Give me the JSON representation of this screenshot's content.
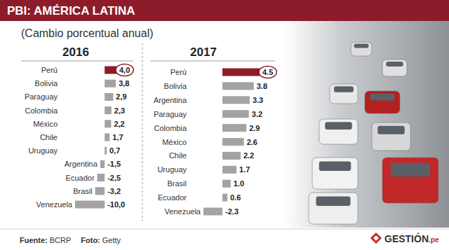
{
  "header": {
    "title": "PBI: AMÉRICA LATINA",
    "subtitle": "(Cambio porcentual anual)"
  },
  "chart_data": [
    {
      "type": "bar",
      "title": "2016",
      "orientation": "horizontal",
      "data_labels": true,
      "tick_labels": false,
      "categories": [
        "Perú",
        "Bolivia",
        "Paraguay",
        "Colombia",
        "México",
        "Chile",
        "Uruguay",
        "Argentina",
        "Ecuador",
        "Brasil",
        "Venezuela"
      ],
      "values": [
        4.0,
        3.8,
        2.9,
        2.3,
        2.2,
        1.7,
        0.7,
        -1.5,
        -2.5,
        -3.2,
        -10.0
      ],
      "value_labels": [
        "4,0",
        "3,8",
        "2,9",
        "2,3",
        "2,2",
        "1,7",
        "0,7",
        "-1,5",
        "-2,5",
        "-3,2",
        "-10,0"
      ],
      "colors": [
        "#8c1c2a",
        "#a3a3a3",
        "#a3a3a3",
        "#a3a3a3",
        "#a3a3a3",
        "#a3a3a3",
        "#a3a3a3",
        "#a3a3a3",
        "#a3a3a3",
        "#a3a3a3",
        "#a3a3a3"
      ],
      "xlim": [
        -10,
        4
      ]
    },
    {
      "type": "bar",
      "title": "2017",
      "orientation": "horizontal",
      "data_labels": true,
      "tick_labels": false,
      "categories": [
        "Perú",
        "Bolivia",
        "Argentina",
        "Paraguay",
        "Colombia",
        "México",
        "Chile",
        "Uruguay",
        "Brasil",
        "Ecuador",
        "Venezuela"
      ],
      "values": [
        4.5,
        3.8,
        3.3,
        3.2,
        2.9,
        2.6,
        2.2,
        1.7,
        1.0,
        0.6,
        -2.3
      ],
      "value_labels": [
        "4.5",
        "3.8",
        "3.3",
        "3.2",
        "2.9",
        "2.6",
        "2.2",
        "1.7",
        "1.0",
        "0.6",
        "-2.3"
      ],
      "colors": [
        "#8c1c2a",
        "#a3a3a3",
        "#a3a3a3",
        "#a3a3a3",
        "#a3a3a3",
        "#a3a3a3",
        "#a3a3a3",
        "#a3a3a3",
        "#a3a3a3",
        "#a3a3a3",
        "#a3a3a3"
      ],
      "xlim": [
        -2.3,
        4.5
      ]
    }
  ],
  "footer": {
    "source_label": "Fuente:",
    "source": "BCRP",
    "photo_label": "Foto:",
    "photo": "Getty",
    "logo": "GESTIÓN",
    "logo_suffix": ".pe"
  }
}
